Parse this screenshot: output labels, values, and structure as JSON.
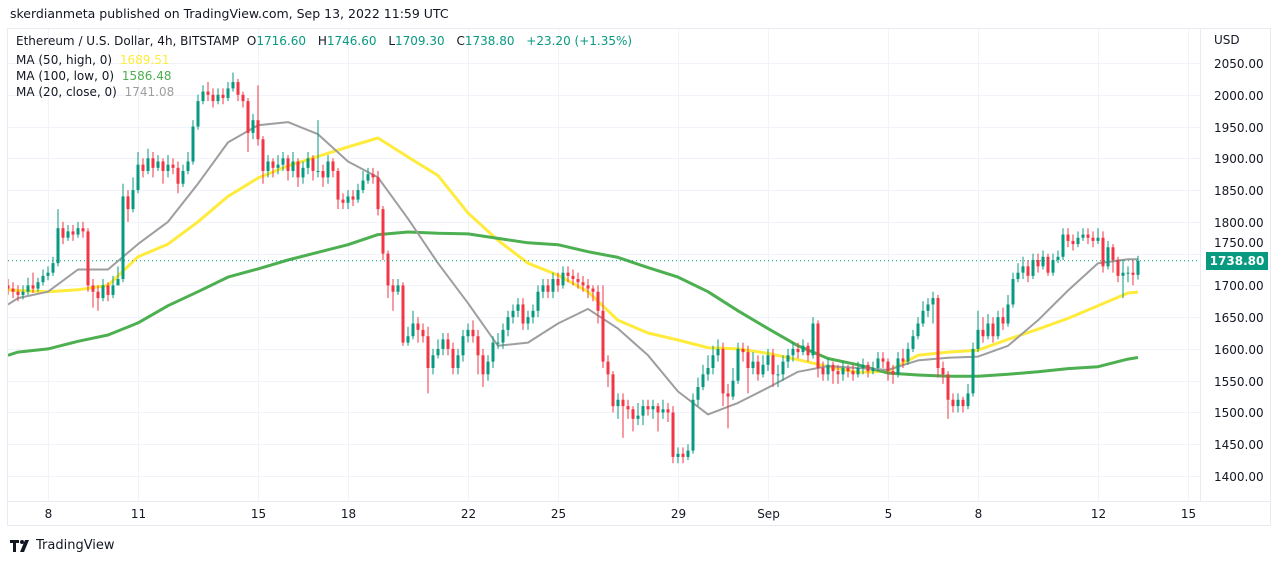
{
  "header": {
    "published": "skerdianmeta published on TradingView.com, Sep 13, 2022 11:59 UTC"
  },
  "legend": {
    "symbol": "Ethereum / U.S. Dollar, 4h, BITSTAMP",
    "open_label": "O",
    "open": "1716.60",
    "high_label": "H",
    "high": "1746.60",
    "low_label": "L",
    "low": "1709.30",
    "close_label": "C",
    "close": "1738.80",
    "change": "+23.20 (+1.35%)",
    "ma50_label": "MA (50, high, 0)",
    "ma50_value": "1689.51",
    "ma100_label": "MA (100, low, 0)",
    "ma100_value": "1586.48",
    "ma20_label": "MA (20, close, 0)",
    "ma20_value": "1741.08"
  },
  "price_axis": {
    "currency": "USD",
    "last_price": "1738.80"
  },
  "branding": {
    "logo_text": "TradingView"
  },
  "colors": {
    "up": "#089981",
    "down": "#f23645",
    "ma50": "#ffeb3b",
    "ma100": "#4caf50",
    "ma20": "#9e9e9e",
    "grid": "#f0f3fa"
  },
  "chart_data": {
    "type": "candlestick",
    "interval": "4h",
    "first_candle": "2022-08-06T16:00:00Z",
    "ylim": [
      1360,
      2080
    ],
    "grid": true,
    "y_ticks": [
      "2050.00",
      "2000.00",
      "1950.00",
      "1900.00",
      "1850.00",
      "1800.00",
      "1750.00",
      "1700.00",
      "1650.00",
      "1600.00",
      "1550.00",
      "1500.00",
      "1450.00",
      "1400.00"
    ],
    "x_ticks": [
      {
        "label": "8",
        "date": "2022-08-08T00:00:00Z"
      },
      {
        "label": "11",
        "date": "2022-08-11T00:00:00Z"
      },
      {
        "label": "15",
        "date": "2022-08-15T00:00:00Z"
      },
      {
        "label": "18",
        "date": "2022-08-18T00:00:00Z"
      },
      {
        "label": "22",
        "date": "2022-08-22T00:00:00Z"
      },
      {
        "label": "25",
        "date": "2022-08-25T00:00:00Z"
      },
      {
        "label": "29",
        "date": "2022-08-29T00:00:00Z"
      },
      {
        "label": "Sep",
        "date": "2022-09-01T00:00:00Z"
      },
      {
        "label": "5",
        "date": "2022-09-05T00:00:00Z"
      },
      {
        "label": "8",
        "date": "2022-09-08T00:00:00Z"
      },
      {
        "label": "12",
        "date": "2022-09-12T00:00:00Z"
      },
      {
        "label": "15",
        "date": "2022-09-15T00:00:00Z"
      }
    ],
    "first_open": 1700,
    "close": [
      1695,
      1690,
      1685,
      1690,
      1700,
      1695,
      1705,
      1715,
      1720,
      1735,
      1790,
      1775,
      1785,
      1780,
      1790,
      1785,
      1700,
      1690,
      1680,
      1700,
      1685,
      1700,
      1710,
      1840,
      1820,
      1850,
      1890,
      1880,
      1900,
      1885,
      1895,
      1880,
      1890,
      1885,
      1860,
      1880,
      1895,
      1950,
      1990,
      2005,
      2000,
      1990,
      2000,
      1995,
      2010,
      2020,
      2000,
      1990,
      1940,
      1960,
      1930,
      1880,
      1895,
      1885,
      1890,
      1900,
      1880,
      1895,
      1870,
      1885,
      1900,
      1880,
      1880,
      1870,
      1895,
      1880,
      1835,
      1830,
      1840,
      1835,
      1850,
      1865,
      1875,
      1870,
      1820,
      1750,
      1700,
      1690,
      1700,
      1610,
      1620,
      1640,
      1630,
      1620,
      1570,
      1590,
      1600,
      1615,
      1600,
      1570,
      1590,
      1620,
      1630,
      1620,
      1590,
      1560,
      1580,
      1610,
      1610,
      1630,
      1650,
      1660,
      1670,
      1640,
      1650,
      1660,
      1690,
      1700,
      1690,
      1710,
      1700,
      1720,
      1715,
      1710,
      1705,
      1700,
      1695,
      1690,
      1660,
      1580,
      1560,
      1510,
      1520,
      1510,
      1505,
      1490,
      1495,
      1510,
      1505,
      1510,
      1500,
      1505,
      1500,
      1430,
      1435,
      1430,
      1440,
      1520,
      1540,
      1560,
      1570,
      1590,
      1600,
      1530,
      1525,
      1550,
      1600,
      1595,
      1570,
      1580,
      1560,
      1575,
      1590,
      1560,
      1560,
      1580,
      1590,
      1600,
      1595,
      1605,
      1590,
      1640,
      1570,
      1560,
      1575,
      1565,
      1560,
      1570,
      1565,
      1560,
      1570,
      1575,
      1565,
      1570,
      1585,
      1580,
      1565,
      1560,
      1585,
      1580,
      1600,
      1620,
      1640,
      1660,
      1670,
      1680,
      1570,
      1560,
      1520,
      1510,
      1520,
      1510,
      1530,
      1600,
      1630,
      1620,
      1640,
      1620,
      1650,
      1640,
      1670,
      1710,
      1720,
      1730,
      1715,
      1740,
      1730,
      1745,
      1720,
      1740,
      1745,
      1780,
      1770,
      1765,
      1775,
      1780,
      1775,
      1770,
      1775,
      1730,
      1760,
      1740,
      1715,
      1720,
      1720,
      1716.6,
      1738.8
    ],
    "high": [
      1710,
      1705,
      1700,
      1700,
      1712,
      1720,
      1712,
      1725,
      1730,
      1745,
      1820,
      1800,
      1795,
      1795,
      1800,
      1800,
      1790,
      1710,
      1700,
      1710,
      1705,
      1715,
      1730,
      1860,
      1850,
      1870,
      1910,
      1900,
      1915,
      1910,
      1905,
      1900,
      1905,
      1900,
      1895,
      1890,
      1910,
      1960,
      2000,
      2015,
      2020,
      2010,
      2010,
      2010,
      2020,
      2035,
      2025,
      2005,
      1995,
      1970,
      2015,
      1935,
      1905,
      1900,
      1905,
      1910,
      1905,
      1910,
      1900,
      1895,
      1910,
      1905,
      1960,
      1890,
      1905,
      1900,
      1885,
      1845,
      1850,
      1850,
      1860,
      1880,
      1885,
      1885,
      1880,
      1825,
      1755,
      1710,
      1710,
      1705,
      1635,
      1660,
      1650,
      1640,
      1635,
      1600,
      1615,
      1625,
      1625,
      1610,
      1600,
      1630,
      1640,
      1645,
      1630,
      1600,
      1590,
      1620,
      1625,
      1640,
      1660,
      1670,
      1680,
      1680,
      1660,
      1670,
      1700,
      1710,
      1710,
      1720,
      1720,
      1730,
      1730,
      1725,
      1720,
      1715,
      1710,
      1700,
      1700,
      1700,
      1590,
      1565,
      1530,
      1530,
      1520,
      1510,
      1515,
      1520,
      1520,
      1520,
      1515,
      1520,
      1515,
      1510,
      1445,
      1445,
      1450,
      1530,
      1555,
      1575,
      1590,
      1605,
      1615,
      1610,
      1545,
      1570,
      1610,
      1610,
      1605,
      1595,
      1590,
      1590,
      1600,
      1600,
      1575,
      1590,
      1600,
      1610,
      1610,
      1615,
      1610,
      1650,
      1645,
      1580,
      1585,
      1580,
      1575,
      1580,
      1575,
      1575,
      1580,
      1585,
      1580,
      1580,
      1595,
      1595,
      1585,
      1575,
      1595,
      1600,
      1610,
      1630,
      1650,
      1675,
      1680,
      1690,
      1685,
      1580,
      1565,
      1530,
      1530,
      1525,
      1545,
      1610,
      1660,
      1650,
      1655,
      1650,
      1660,
      1665,
      1685,
      1720,
      1735,
      1745,
      1740,
      1750,
      1750,
      1755,
      1750,
      1750,
      1755,
      1790,
      1790,
      1780,
      1785,
      1790,
      1790,
      1785,
      1790,
      1785,
      1770,
      1765,
      1745,
      1740,
      1730,
      1740,
      1746.6
    ],
    "low": [
      1685,
      1680,
      1675,
      1678,
      1685,
      1688,
      1690,
      1700,
      1708,
      1715,
      1730,
      1765,
      1770,
      1770,
      1775,
      1775,
      1690,
      1665,
      1660,
      1675,
      1675,
      1680,
      1700,
      1705,
      1800,
      1815,
      1845,
      1870,
      1875,
      1870,
      1880,
      1860,
      1870,
      1875,
      1845,
      1855,
      1875,
      1890,
      1945,
      1985,
      1990,
      1980,
      1985,
      1985,
      1990,
      2005,
      1990,
      1980,
      1910,
      1930,
      1920,
      1860,
      1870,
      1870,
      1875,
      1880,
      1865,
      1870,
      1855,
      1860,
      1875,
      1865,
      1870,
      1855,
      1860,
      1870,
      1820,
      1820,
      1820,
      1825,
      1830,
      1845,
      1860,
      1860,
      1810,
      1740,
      1680,
      1660,
      1685,
      1605,
      1605,
      1615,
      1610,
      1610,
      1530,
      1560,
      1585,
      1590,
      1590,
      1560,
      1560,
      1580,
      1610,
      1610,
      1560,
      1540,
      1550,
      1570,
      1600,
      1600,
      1620,
      1640,
      1650,
      1630,
      1630,
      1640,
      1650,
      1680,
      1680,
      1680,
      1690,
      1695,
      1705,
      1700,
      1695,
      1690,
      1680,
      1675,
      1640,
      1570,
      1540,
      1500,
      1490,
      1460,
      1490,
      1470,
      1480,
      1480,
      1495,
      1490,
      1470,
      1490,
      1485,
      1420,
      1420,
      1420,
      1425,
      1435,
      1510,
      1535,
      1550,
      1560,
      1580,
      1510,
      1475,
      1520,
      1545,
      1580,
      1530,
      1560,
      1550,
      1555,
      1565,
      1540,
      1540,
      1550,
      1570,
      1580,
      1585,
      1590,
      1580,
      1585,
      1555,
      1550,
      1550,
      1545,
      1545,
      1550,
      1555,
      1550,
      1555,
      1560,
      1555,
      1560,
      1565,
      1570,
      1550,
      1545,
      1555,
      1570,
      1575,
      1595,
      1615,
      1635,
      1650,
      1640,
      1555,
      1545,
      1490,
      1500,
      1500,
      1500,
      1505,
      1525,
      1595,
      1610,
      1615,
      1610,
      1615,
      1630,
      1635,
      1665,
      1705,
      1710,
      1705,
      1710,
      1720,
      1725,
      1715,
      1715,
      1735,
      1740,
      1760,
      1755,
      1760,
      1770,
      1765,
      1760,
      1765,
      1720,
      1725,
      1720,
      1705,
      1680,
      1705,
      1700,
      1709.3
    ],
    "ma_dates": [
      "Aug 6 16:00",
      "Aug 7",
      "Aug 8",
      "Aug 9",
      "Aug 10",
      "Aug 11",
      "Aug 12",
      "Aug 13",
      "Aug 14",
      "Aug 15",
      "Aug 16",
      "Aug 17",
      "Aug 18",
      "Aug 19",
      "Aug 20",
      "Aug 21",
      "Aug 22",
      "Aug 23",
      "Aug 24",
      "Aug 25",
      "Aug 26",
      "Aug 27",
      "Aug 28",
      "Aug 29",
      "Aug 30",
      "Aug 31",
      "Sep 1",
      "Sep 2",
      "Sep 3",
      "Sep 4",
      "Sep 5",
      "Sep 6",
      "Sep 7",
      "Sep 8",
      "Sep 9",
      "Sep 10",
      "Sep 11",
      "Sep 12",
      "Sep 13",
      "Sep 13 08:00"
    ],
    "series": [
      {
        "name": "MA (50, high, 0)",
        "color": "#ffeb3b",
        "values": [
          1693,
          1692,
          1690,
          1693,
          1700,
          1745,
          1765,
          1800,
          1840,
          1869,
          1888,
          1903,
          1918,
          1932,
          1902,
          1873,
          1814,
          1771,
          1735,
          1716,
          1690,
          1645,
          1625,
          1614,
          1602,
          1600,
          1593,
          1583,
          1572,
          1563,
          1565,
          1590,
          1595,
          1598,
          1615,
          1631,
          1648,
          1668,
          1688,
          1689.51
        ]
      },
      {
        "name": "MA (100, low, 0)",
        "color": "#4caf50",
        "values": [
          1590,
          1595,
          1600,
          1612,
          1622,
          1641,
          1668,
          1690,
          1713,
          1726,
          1740,
          1752,
          1764,
          1780,
          1784,
          1782,
          1781,
          1774,
          1767,
          1764,
          1753,
          1744,
          1728,
          1713,
          1690,
          1660,
          1632,
          1605,
          1585,
          1575,
          1562,
          1559,
          1557,
          1557,
          1560,
          1564,
          1569,
          1572,
          1584,
          1586.48
        ]
      },
      {
        "name": "MA (20, close, 0)",
        "color": "#9e9e9e",
        "values": [
          1670,
          1680,
          1690,
          1725,
          1725,
          1765,
          1800,
          1860,
          1925,
          1952,
          1957,
          1938,
          1895,
          1870,
          1805,
          1735,
          1672,
          1605,
          1610,
          1640,
          1663,
          1632,
          1590,
          1533,
          1497,
          1515,
          1539,
          1564,
          1573,
          1570,
          1567,
          1582,
          1586,
          1588,
          1605,
          1645,
          1692,
          1735,
          1741,
          1741.08
        ]
      }
    ]
  }
}
